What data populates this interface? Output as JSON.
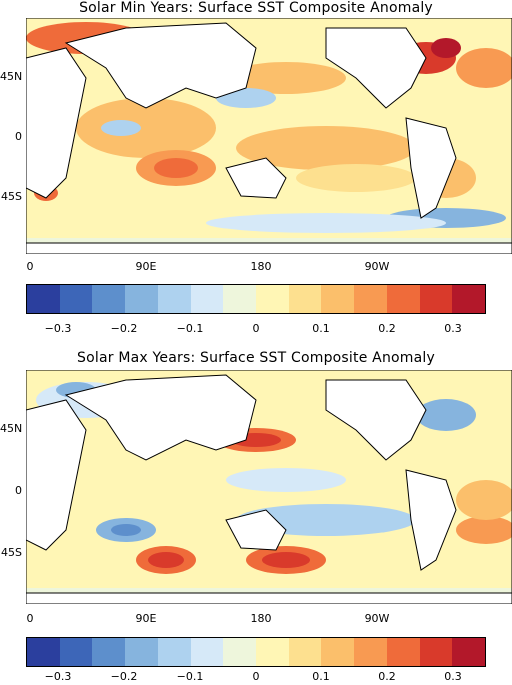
{
  "panels": [
    {
      "title": "Solar Min Years: Surface SST Composite Anomaly",
      "y_labels": [
        "45N",
        "0",
        "45S"
      ],
      "x_labels": [
        "0",
        "90E",
        "180",
        "90W"
      ]
    },
    {
      "title": "Solar Max Years: Surface SST Composite Anomaly",
      "y_labels": [
        "45N",
        "0",
        "45S"
      ],
      "x_labels": [
        "0",
        "90E",
        "180",
        "90W"
      ]
    }
  ],
  "colorbar": {
    "labels": [
      "−0.3",
      "−0.2",
      "−0.1",
      "0",
      "0.1",
      "0.2",
      "0.3"
    ],
    "colors": [
      "#2b3f9e",
      "#3d66b8",
      "#5d8fcc",
      "#86b4de",
      "#aed2ef",
      "#d6e9f8",
      "#eef6dc",
      "#fff6b5",
      "#fde08f",
      "#fbbf6b",
      "#f89a52",
      "#ef6b3a",
      "#d93a2b",
      "#b3182a"
    ]
  },
  "chart_data": {
    "type": "heatmap",
    "field": "Surface SST composite anomaly",
    "x_ticks": [
      "0",
      "90E",
      "180",
      "90W"
    ],
    "y_ticks": [
      "45N",
      "0",
      "45S"
    ],
    "colorbar_range": [
      -0.35,
      0.35
    ],
    "colorbar_levels": 14
  }
}
